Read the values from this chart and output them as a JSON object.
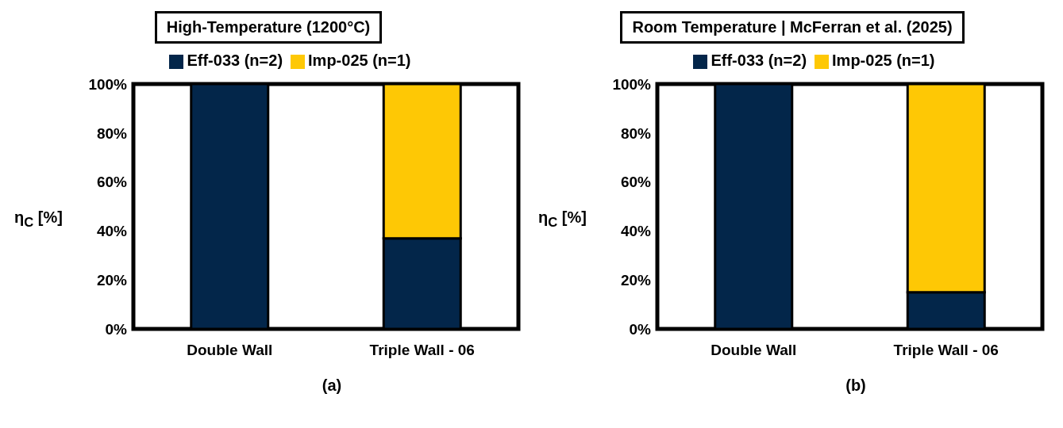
{
  "chart_data": [
    {
      "type": "bar",
      "title": "High-Temperature (1200°C)",
      "ylabel": "η$_{C}$ [%]",
      "categories": [
        "Double Wall",
        "Triple Wall - 06"
      ],
      "stacked": true,
      "legend": "top",
      "series": [
        {
          "name": "Eff-033 (n=2)",
          "color": "#03264a",
          "values": [
            100,
            37
          ]
        },
        {
          "name": "Imp-025 (n=1)",
          "color": "#fec805",
          "values": [
            0,
            63
          ]
        }
      ],
      "ylim": [
        0,
        100
      ],
      "yticks": [
        {
          "value": 0,
          "label": "0%"
        },
        {
          "value": 20,
          "label": "20%"
        },
        {
          "value": 40,
          "label": "40%"
        },
        {
          "value": 60,
          "label": "60%"
        },
        {
          "value": 80,
          "label": "80%"
        },
        {
          "value": 100,
          "label": "100%"
        }
      ],
      "grid": false,
      "annotations": [
        "(a)"
      ]
    },
    {
      "type": "bar",
      "title": "Room Temperature | McFerran et al. (2025)",
      "ylabel": "η$_{C}$ [%]",
      "categories": [
        "Double Wall",
        "Triple Wall - 06"
      ],
      "stacked": true,
      "legend": "top",
      "series": [
        {
          "name": "Eff-033 (n=2)",
          "color": "#03264a",
          "values": [
            100,
            15
          ]
        },
        {
          "name": "Imp-025 (n=1)",
          "color": "#fec805",
          "values": [
            0,
            85
          ]
        }
      ],
      "ylim": [
        0,
        100
      ],
      "yticks": [
        {
          "value": 0,
          "label": "0%"
        },
        {
          "value": 20,
          "label": "20%"
        },
        {
          "value": 40,
          "label": "40%"
        },
        {
          "value": 60,
          "label": "60%"
        },
        {
          "value": 80,
          "label": "80%"
        },
        {
          "value": 100,
          "label": "100%"
        }
      ],
      "grid": false,
      "annotations": [
        "(b)"
      ]
    }
  ]
}
